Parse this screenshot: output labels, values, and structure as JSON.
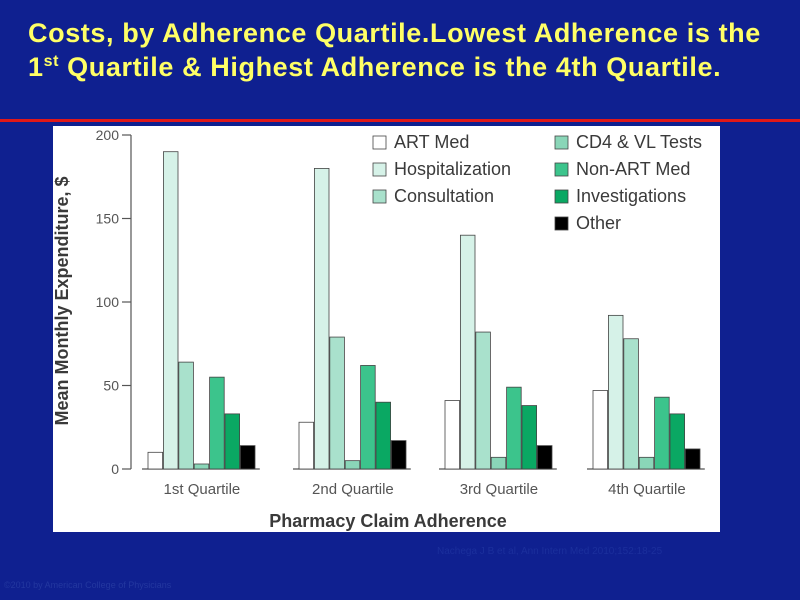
{
  "slide": {
    "title_part1": "Costs, by Adherence Quartile.Lowest Adherence is the 1",
    "title_sup1": "st",
    "title_part2": " Quartile & Highest Adherence is the 4th Quartile.",
    "citation": "Nachega J B et al, Ann Intern Med 2010;152:18-25",
    "copyright": "©2010 by American College of Physicians"
  },
  "colors": {
    "background": "#0f2090",
    "title": "#ffff66",
    "rule": "#e01818",
    "ART Med": "#ffffff",
    "Hospitalization": "#d6f2e8",
    "Consultation": "#a9e1cc",
    "CD4 & VL Tests": "#8ad6b8",
    "Non-ART Med": "#3cc48c",
    "Investigations": "#0aa863",
    "Other": "#000000"
  },
  "chart_data": {
    "type": "bar",
    "xlabel": "Pharmacy Claim Adherence",
    "ylabel": "Mean Monthly Expenditure, $",
    "ylim": [
      0,
      200
    ],
    "yticks": [
      0,
      50,
      100,
      150,
      200
    ],
    "grid": false,
    "legend_position": "top-right",
    "categories": [
      "1st Quartile",
      "2nd Quartile",
      "3rd Quartile",
      "4th Quartile"
    ],
    "series": [
      {
        "name": "ART Med",
        "values": [
          10,
          28,
          41,
          47
        ]
      },
      {
        "name": "Hospitalization",
        "values": [
          190,
          180,
          140,
          92
        ]
      },
      {
        "name": "Consultation",
        "values": [
          64,
          79,
          82,
          78
        ]
      },
      {
        "name": "CD4 & VL Tests",
        "values": [
          3,
          5,
          7,
          7
        ]
      },
      {
        "name": "Non-ART Med",
        "values": [
          55,
          62,
          49,
          43
        ]
      },
      {
        "name": "Investigations",
        "values": [
          33,
          40,
          38,
          33
        ]
      },
      {
        "name": "Other",
        "values": [
          14,
          17,
          14,
          12
        ]
      }
    ],
    "legend_columns": [
      [
        "ART Med",
        "Hospitalization",
        "Consultation"
      ],
      [
        "CD4 & VL Tests",
        "Non-ART Med",
        "Investigations",
        "Other"
      ]
    ]
  }
}
